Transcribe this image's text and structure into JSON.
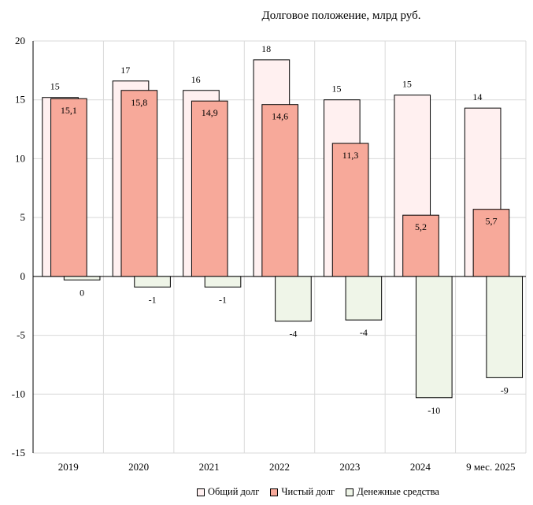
{
  "chart_data": {
    "type": "bar",
    "title": "Долговое положение, млрд руб.",
    "categories": [
      "2019",
      "2020",
      "2021",
      "2022",
      "2023",
      "2024",
      "9 мес. 2025"
    ],
    "series": [
      {
        "name": "Общий долг",
        "values": [
          15.2,
          16.6,
          15.8,
          18.4,
          15.0,
          15.4,
          14.3
        ],
        "labels": [
          "15",
          "17",
          "16",
          "18",
          "15",
          "15",
          "14"
        ],
        "fill": "#fff0f0"
      },
      {
        "name": "Чистый долг",
        "values": [
          15.1,
          15.8,
          14.9,
          14.6,
          11.3,
          5.2,
          5.7
        ],
        "labels": [
          "15,1",
          "15,8",
          "14,9",
          "14,6",
          "11,3",
          "5,2",
          "5,7"
        ],
        "fill": "#f7a99a"
      },
      {
        "name": "Денежные средства",
        "values": [
          -0.3,
          -0.9,
          -0.9,
          -3.8,
          -3.7,
          -10.3,
          -8.6
        ],
        "labels": [
          "0",
          "-1",
          "-1",
          "-4",
          "-4",
          "-10",
          "-9"
        ],
        "fill": "#eff5e8"
      }
    ],
    "y_ticks": [
      "20",
      "15",
      "10",
      "5",
      "0",
      "-5",
      "-10",
      "-15"
    ],
    "ylim": [
      -15,
      20
    ],
    "grid": true,
    "legend": "bottom"
  }
}
